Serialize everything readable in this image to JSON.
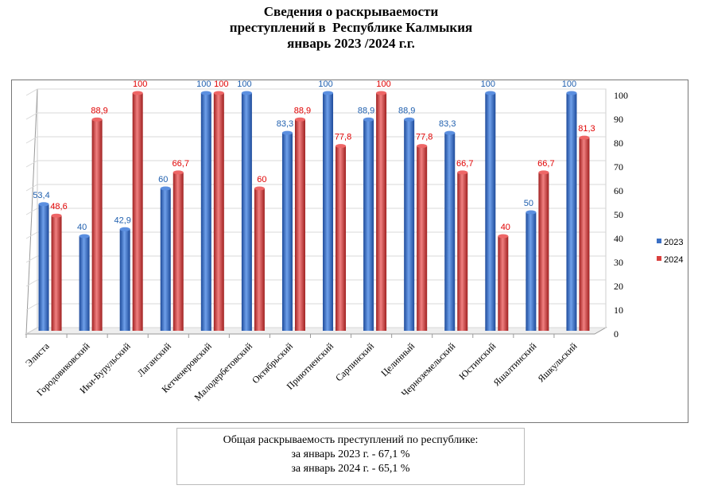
{
  "title": [
    "Сведения о раскрываемости",
    "преступлений в  Республике Калмыкия",
    "январь 2023 /2024 г.г."
  ],
  "chart_data": {
    "type": "bar",
    "categories": [
      "Элиста",
      "Городовиковский",
      "Ики-Бурульский",
      "Лаганский",
      "Кетченеровский",
      "Малодербетовский",
      "Октябрьский",
      "Приютненский",
      "Сарпинский",
      "Целинный",
      "Черноземельский",
      "Юстинский",
      "Яшалтинский",
      "Яшкульский"
    ],
    "series": [
      {
        "name": "2023",
        "color": "#3a6fc4",
        "label_color": "#1f5fae",
        "values": [
          53.4,
          40,
          42.9,
          60,
          100,
          100,
          83.3,
          100,
          88.9,
          88.9,
          83.3,
          100,
          50,
          100
        ]
      },
      {
        "name": "2024",
        "color": "#d9403e",
        "label_color": "#e00000",
        "values": [
          48.6,
          88.9,
          100,
          66.7,
          100,
          60,
          88.9,
          77.8,
          100,
          77.8,
          66.7,
          40,
          66.7,
          81.3
        ]
      }
    ],
    "ylim": [
      0,
      100
    ],
    "yticks": [
      0,
      10,
      20,
      30,
      40,
      50,
      60,
      70,
      80,
      90,
      100
    ],
    "grid": true,
    "legend": "right"
  },
  "summary": [
    "Общая раскрываемость преступлений  по республике:",
    "за январь 2023 г.  - 67,1 %",
    "за январь 2024 г.  - 65,1 %"
  ]
}
